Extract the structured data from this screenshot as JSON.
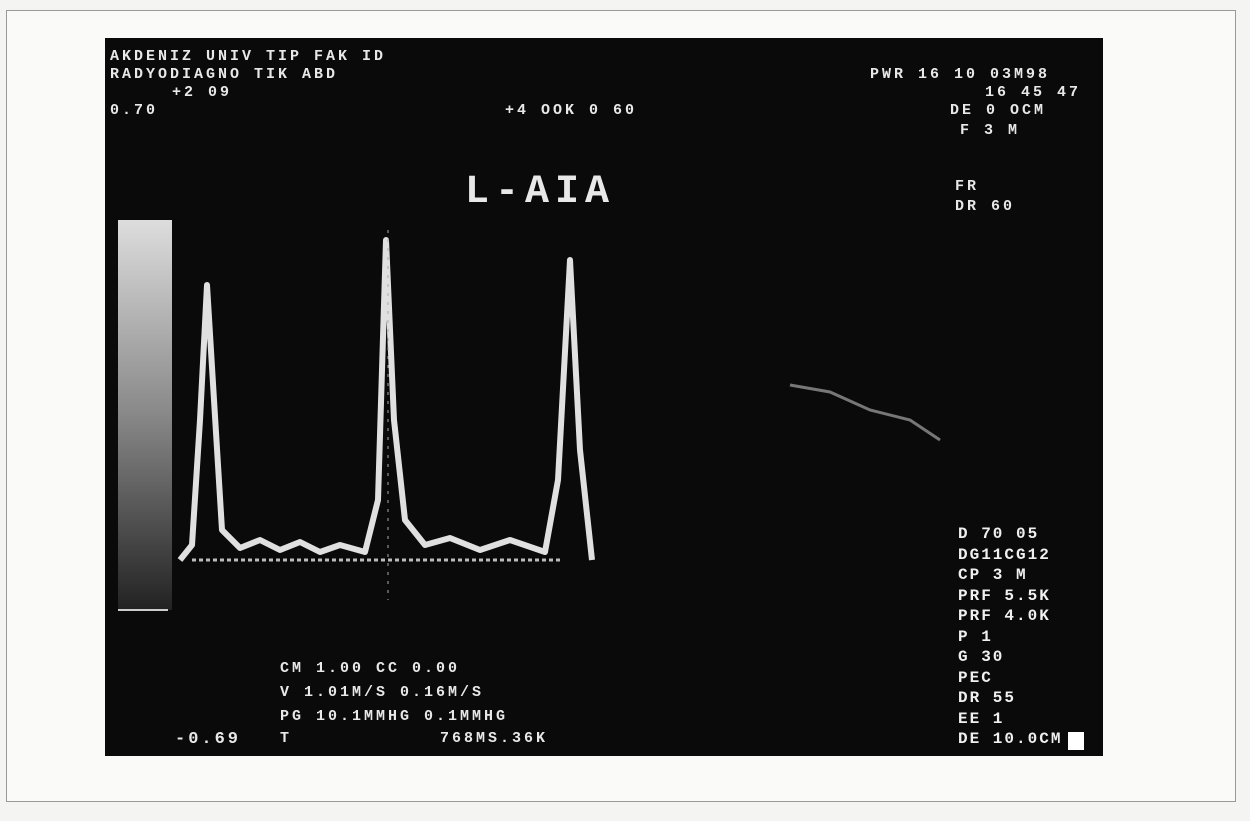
{
  "header": {
    "institution": "AKDENIZ UNIV TIP FAK ID",
    "department": "RADYODIAGNO TIK ABD",
    "left_value": "+2 09",
    "scale_top": "0.70",
    "center_info": "+4 OOK 0 60",
    "datetime": "PWR 16 10 03M98",
    "time": "16 45 47",
    "depth": "DE 0 OCM",
    "freq": "F 3 M",
    "frame_rate": "FR",
    "dynamic_range": "DR 60"
  },
  "title": "L-AIA",
  "settings": [
    "D 70 05",
    "DG11CG12",
    "CP 3 M",
    "PRF 5.5K",
    "PRF 4.0K",
    "P 1",
    "G 30",
    "PEC",
    "DR 55",
    "EE 1",
    "DE 10.0CM"
  ],
  "measurements": [
    "CM 1.00 CC 0.00",
    "V 1.01M/S 0.16M/S",
    "PG 10.1MMHG 0.1MMHG"
  ],
  "scale_bottom": "-0.69",
  "time_label": "T",
  "sweep": "768MS.36K"
}
